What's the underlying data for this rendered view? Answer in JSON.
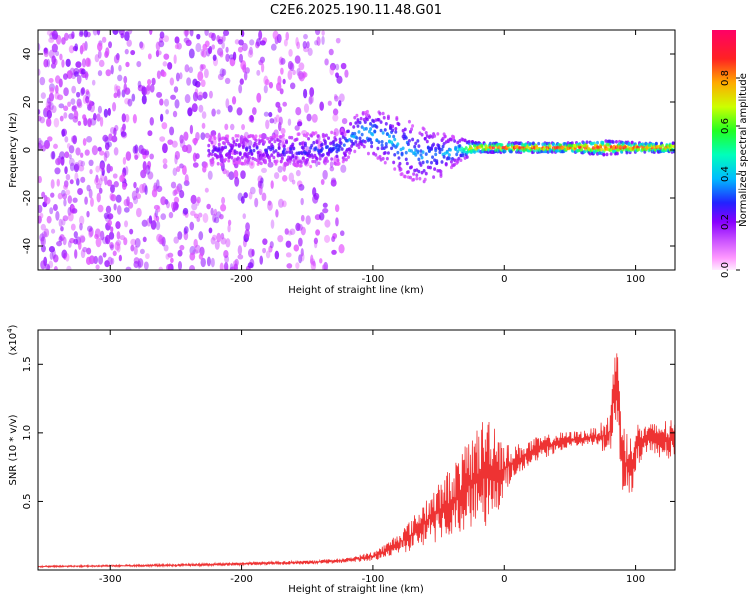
{
  "title": "C2E6.2025.190.11.48.G01",
  "colors": {
    "axis": "#000000",
    "snr_line": "#ee3333",
    "colormap": [
      "#ff66ff",
      "#cc44ff",
      "#8800ff",
      "#2222ff",
      "#00bbff",
      "#00ffbb",
      "#22ff22",
      "#ccff00",
      "#ffaa00",
      "#ff2222",
      "#ff0066"
    ]
  },
  "chart_data": [
    {
      "type": "heatmap",
      "xlabel": "Height of straight line (km)",
      "ylabel": "Frequency (Hz)",
      "xlim": [
        -355,
        130
      ],
      "ylim": [
        -50,
        50
      ],
      "x_ticks": [
        -300,
        -200,
        -100,
        0,
        100
      ],
      "x_tick_labels": [
        "-300",
        "-200",
        "-100",
        "0",
        "100"
      ],
      "y_ticks": [
        -40,
        -20,
        0,
        20,
        40
      ],
      "y_tick_labels": [
        "-40",
        "-20",
        "0",
        "20",
        "40"
      ],
      "colorbar": {
        "label": "Normalized spectral amplitude",
        "range": [
          0,
          1
        ],
        "ticks": [
          0.0,
          0.2,
          0.4,
          0.6,
          0.8
        ],
        "tick_labels": [
          "0.0",
          "0.2",
          "0.4",
          "0.6",
          "0.8"
        ]
      },
      "noise_region": {
        "x_from": -355,
        "x_to": -120,
        "freq_range": [
          -50,
          50
        ],
        "amplitude": 0.1
      },
      "signal_band": [
        {
          "x": -225,
          "center": 0,
          "halfwidth": 6,
          "amplitude": 0.22
        },
        {
          "x": -200,
          "center": 0,
          "halfwidth": 6,
          "amplitude": 0.25
        },
        {
          "x": -175,
          "center": 0,
          "halfwidth": 6,
          "amplitude": 0.28
        },
        {
          "x": -150,
          "center": 0,
          "halfwidth": 7,
          "amplitude": 0.3
        },
        {
          "x": -125,
          "center": 1,
          "halfwidth": 7,
          "amplitude": 0.32
        },
        {
          "x": -110,
          "center": 8,
          "halfwidth": 8,
          "amplitude": 0.4
        },
        {
          "x": -95,
          "center": 6,
          "halfwidth": 10,
          "amplitude": 0.42
        },
        {
          "x": -80,
          "center": 2,
          "halfwidth": 12,
          "amplitude": 0.4
        },
        {
          "x": -65,
          "center": -2,
          "halfwidth": 12,
          "amplitude": 0.38
        },
        {
          "x": -50,
          "center": -2,
          "halfwidth": 10,
          "amplitude": 0.36
        },
        {
          "x": -35,
          "center": 0,
          "halfwidth": 5,
          "amplitude": 0.45
        },
        {
          "x": -20,
          "center": 1,
          "halfwidth": 2,
          "amplitude": 0.9
        },
        {
          "x": 0,
          "center": 1,
          "halfwidth": 2,
          "amplitude": 0.92
        },
        {
          "x": 25,
          "center": 1,
          "halfwidth": 2,
          "amplitude": 0.93
        },
        {
          "x": 50,
          "center": 1,
          "halfwidth": 2,
          "amplitude": 0.92
        },
        {
          "x": 75,
          "center": 1,
          "halfwidth": 3,
          "amplitude": 0.93
        },
        {
          "x": 100,
          "center": 1,
          "halfwidth": 2,
          "amplitude": 0.92
        },
        {
          "x": 130,
          "center": 1,
          "halfwidth": 2,
          "amplitude": 0.9
        }
      ]
    },
    {
      "type": "line",
      "xlabel": "Height of straight line (km)",
      "ylabel": "SNR (10 * v/v)",
      "y_scale_label": "(x10",
      "y_scale_exponent": "4",
      "xlim": [
        -355,
        130
      ],
      "ylim": [
        0,
        17500
      ],
      "x_ticks": [
        -300,
        -200,
        -100,
        0,
        100
      ],
      "x_tick_labels": [
        "-300",
        "-200",
        "-100",
        "0",
        "100"
      ],
      "y_ticks": [
        5000,
        10000,
        15000
      ],
      "y_tick_labels": [
        "0.5",
        "1.0",
        "1.5"
      ],
      "series": [
        {
          "x": [
            -355,
            -300,
            -250,
            -200,
            -150,
            -120,
            -100,
            -90,
            -80,
            -70,
            -60,
            -50,
            -40,
            -30,
            -20,
            -10,
            -5,
            0,
            10,
            25,
            40,
            50,
            60,
            70,
            80,
            85,
            90,
            95,
            100,
            110,
            120,
            130
          ],
          "y": [
            250,
            300,
            350,
            450,
            550,
            700,
            1000,
            1400,
            2000,
            2600,
            3500,
            4200,
            5000,
            6000,
            6800,
            7500,
            7000,
            7400,
            8000,
            8800,
            9300,
            9500,
            9600,
            9700,
            9800,
            14000,
            8500,
            7000,
            9000,
            9700,
            9500,
            9400
          ],
          "spread": [
            100,
            100,
            150,
            200,
            250,
            300,
            600,
            900,
            1400,
            2000,
            3000,
            3500,
            4500,
            5000,
            6500,
            7000,
            6500,
            3000,
            2000,
            1500,
            1200,
            1000,
            1000,
            1200,
            2500,
            6000,
            5000,
            4500,
            3000,
            1500,
            2500,
            2500
          ]
        }
      ]
    }
  ]
}
